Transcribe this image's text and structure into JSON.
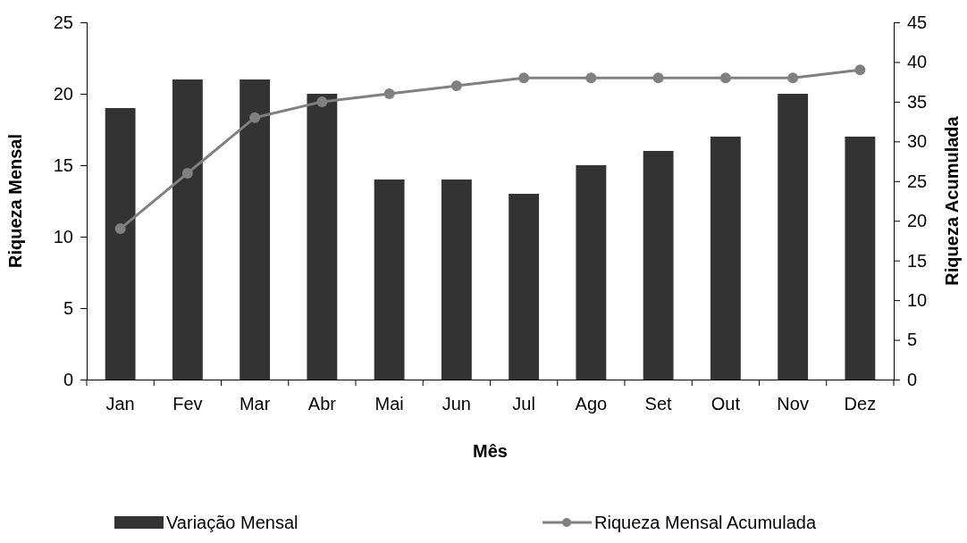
{
  "chart_data": {
    "type": "bar",
    "xlabel": "Mês",
    "ylabel": "Riqueza Mensal",
    "y2label": "Riqueza Acumulada",
    "categories": [
      "Jan",
      "Fev",
      "Mar",
      "Abr",
      "Mai",
      "Jun",
      "Jul",
      "Ago",
      "Set",
      "Out",
      "Nov",
      "Dez"
    ],
    "series": [
      {
        "name": "Variação Mensal",
        "color": "#333333",
        "values": [
          19,
          21,
          21,
          20,
          14,
          14,
          13,
          15,
          16,
          17,
          20,
          17
        ]
      },
      {
        "name": "Riqueza Mensal Acumulada",
        "type": "line",
        "axis": "y2",
        "color": "#808080",
        "marker": "circle",
        "values": [
          19,
          26,
          33,
          35,
          36,
          37,
          38,
          38,
          38,
          38,
          38,
          39
        ]
      }
    ],
    "ylim": [
      0,
      25
    ],
    "yticks": [
      0,
      5,
      10,
      15,
      20,
      25
    ],
    "y2lim": [
      0,
      45
    ],
    "y2ticks": [
      0,
      5,
      10,
      15,
      20,
      25,
      30,
      35,
      40,
      45
    ],
    "grid": false,
    "legend": "bottom"
  }
}
